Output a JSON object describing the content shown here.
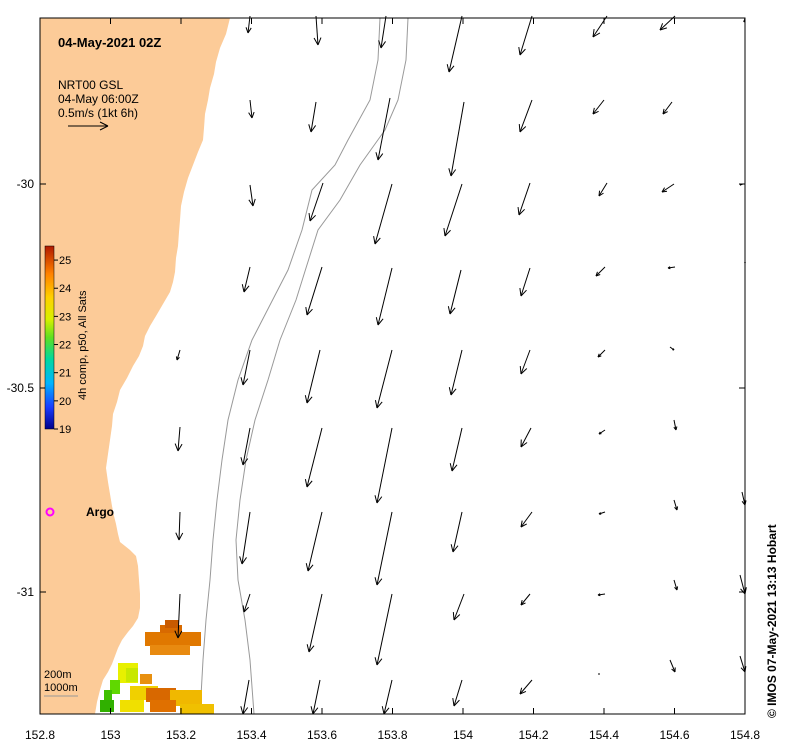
{
  "title": "04-May-2021 02Z",
  "product": {
    "line1": "NRT00 GSL",
    "line2": "04-May 06:00Z",
    "line3": "0.5m/s (1kt 6h)"
  },
  "colorbar": {
    "label": "4h comp, p50, All Sats",
    "ticks": [
      "25",
      "24",
      "23",
      "22",
      "21",
      "20",
      "19"
    ],
    "min": 19,
    "max": 25.5
  },
  "x_ticks": [
    "152.8",
    "153",
    "153.2",
    "153.4",
    "153.6",
    "153.8",
    "154",
    "154.2",
    "154.4",
    "154.6",
    "154.8"
  ],
  "y_ticks": [
    "-30",
    "-30.5",
    "-31"
  ],
  "argo_label": "Argo",
  "isobaths": {
    "line1": "200m",
    "line2": "1000m"
  },
  "credit": "© IMOS 07-May-2021 13:13 Hobart",
  "colors": {
    "land": "#fccb98",
    "ocean": "#ffffff",
    "isobath": "#999999",
    "argo": "#ff00ff"
  }
}
